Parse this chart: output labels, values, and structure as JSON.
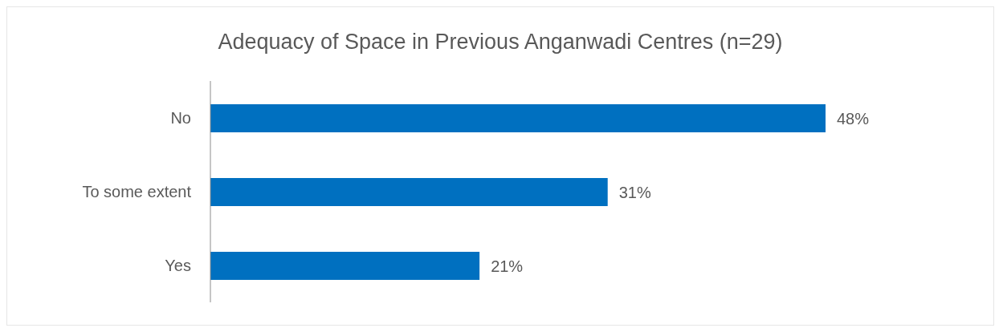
{
  "chart_data": {
    "type": "bar",
    "orientation": "horizontal",
    "title": "Adequacy of Space in Previous Anganwadi Centres (n=29)",
    "categories": [
      "No",
      "To some extent",
      "Yes"
    ],
    "values": [
      48,
      31,
      21
    ],
    "color": "#0070c0",
    "value_labels": [
      "48%",
      "31%",
      "21%"
    ],
    "tick_labels": "y",
    "grid": false,
    "legend": false
  }
}
